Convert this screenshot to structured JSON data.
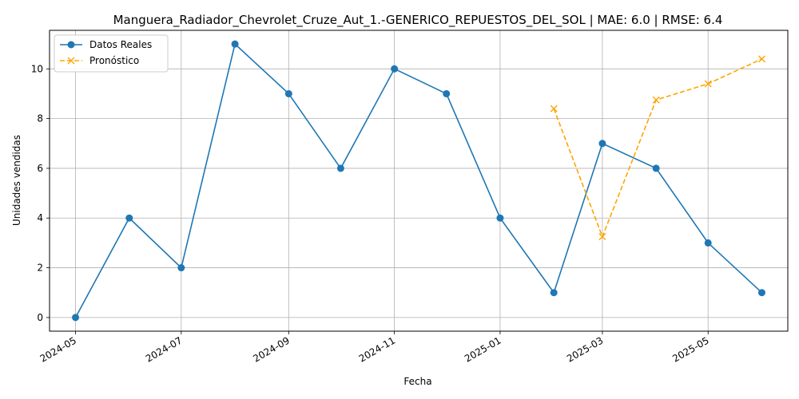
{
  "chart_data": {
    "type": "line",
    "title": "Manguera_Radiador_Chevrolet_Cruze_Aut_1.-GENERICO_REPUESTOS_DEL_SOL | MAE: 6.0 | RMSE: 6.4",
    "xlabel": "Fecha",
    "ylabel": "Unidades vendidas",
    "x_ticks": [
      "2024-05",
      "2024-07",
      "2024-09",
      "2024-11",
      "2025-01",
      "2025-03",
      "2025-05"
    ],
    "y_ticks": [
      0,
      2,
      4,
      6,
      8,
      10
    ],
    "ylim": [
      -0.55,
      11.55
    ],
    "xlim": [
      "2024-04-16",
      "2025-06-16"
    ],
    "grid": true,
    "legend_position": "top-left",
    "series": [
      {
        "name": "Datos Reales",
        "color": "#1f77b4",
        "marker": "circle",
        "line_style": "solid",
        "points": [
          {
            "x": "2024-05-01",
            "y": 0
          },
          {
            "x": "2024-06-01",
            "y": 4
          },
          {
            "x": "2024-07-01",
            "y": 2
          },
          {
            "x": "2024-08-01",
            "y": 11
          },
          {
            "x": "2024-09-01",
            "y": 9
          },
          {
            "x": "2024-10-01",
            "y": 6
          },
          {
            "x": "2024-11-01",
            "y": 10
          },
          {
            "x": "2024-12-01",
            "y": 9
          },
          {
            "x": "2025-01-01",
            "y": 4
          },
          {
            "x": "2025-02-01",
            "y": 1
          },
          {
            "x": "2025-03-01",
            "y": 7
          },
          {
            "x": "2025-04-01",
            "y": 6
          },
          {
            "x": "2025-05-01",
            "y": 3
          },
          {
            "x": "2025-06-01",
            "y": 1
          }
        ]
      },
      {
        "name": "Pronóstico",
        "color": "#ffa500",
        "marker": "x",
        "line_style": "dashed",
        "points": [
          {
            "x": "2025-02-01",
            "y": 8.4
          },
          {
            "x": "2025-03-01",
            "y": 3.25
          },
          {
            "x": "2025-04-01",
            "y": 8.75
          },
          {
            "x": "2025-05-01",
            "y": 9.4
          },
          {
            "x": "2025-06-01",
            "y": 10.4
          }
        ]
      }
    ]
  }
}
